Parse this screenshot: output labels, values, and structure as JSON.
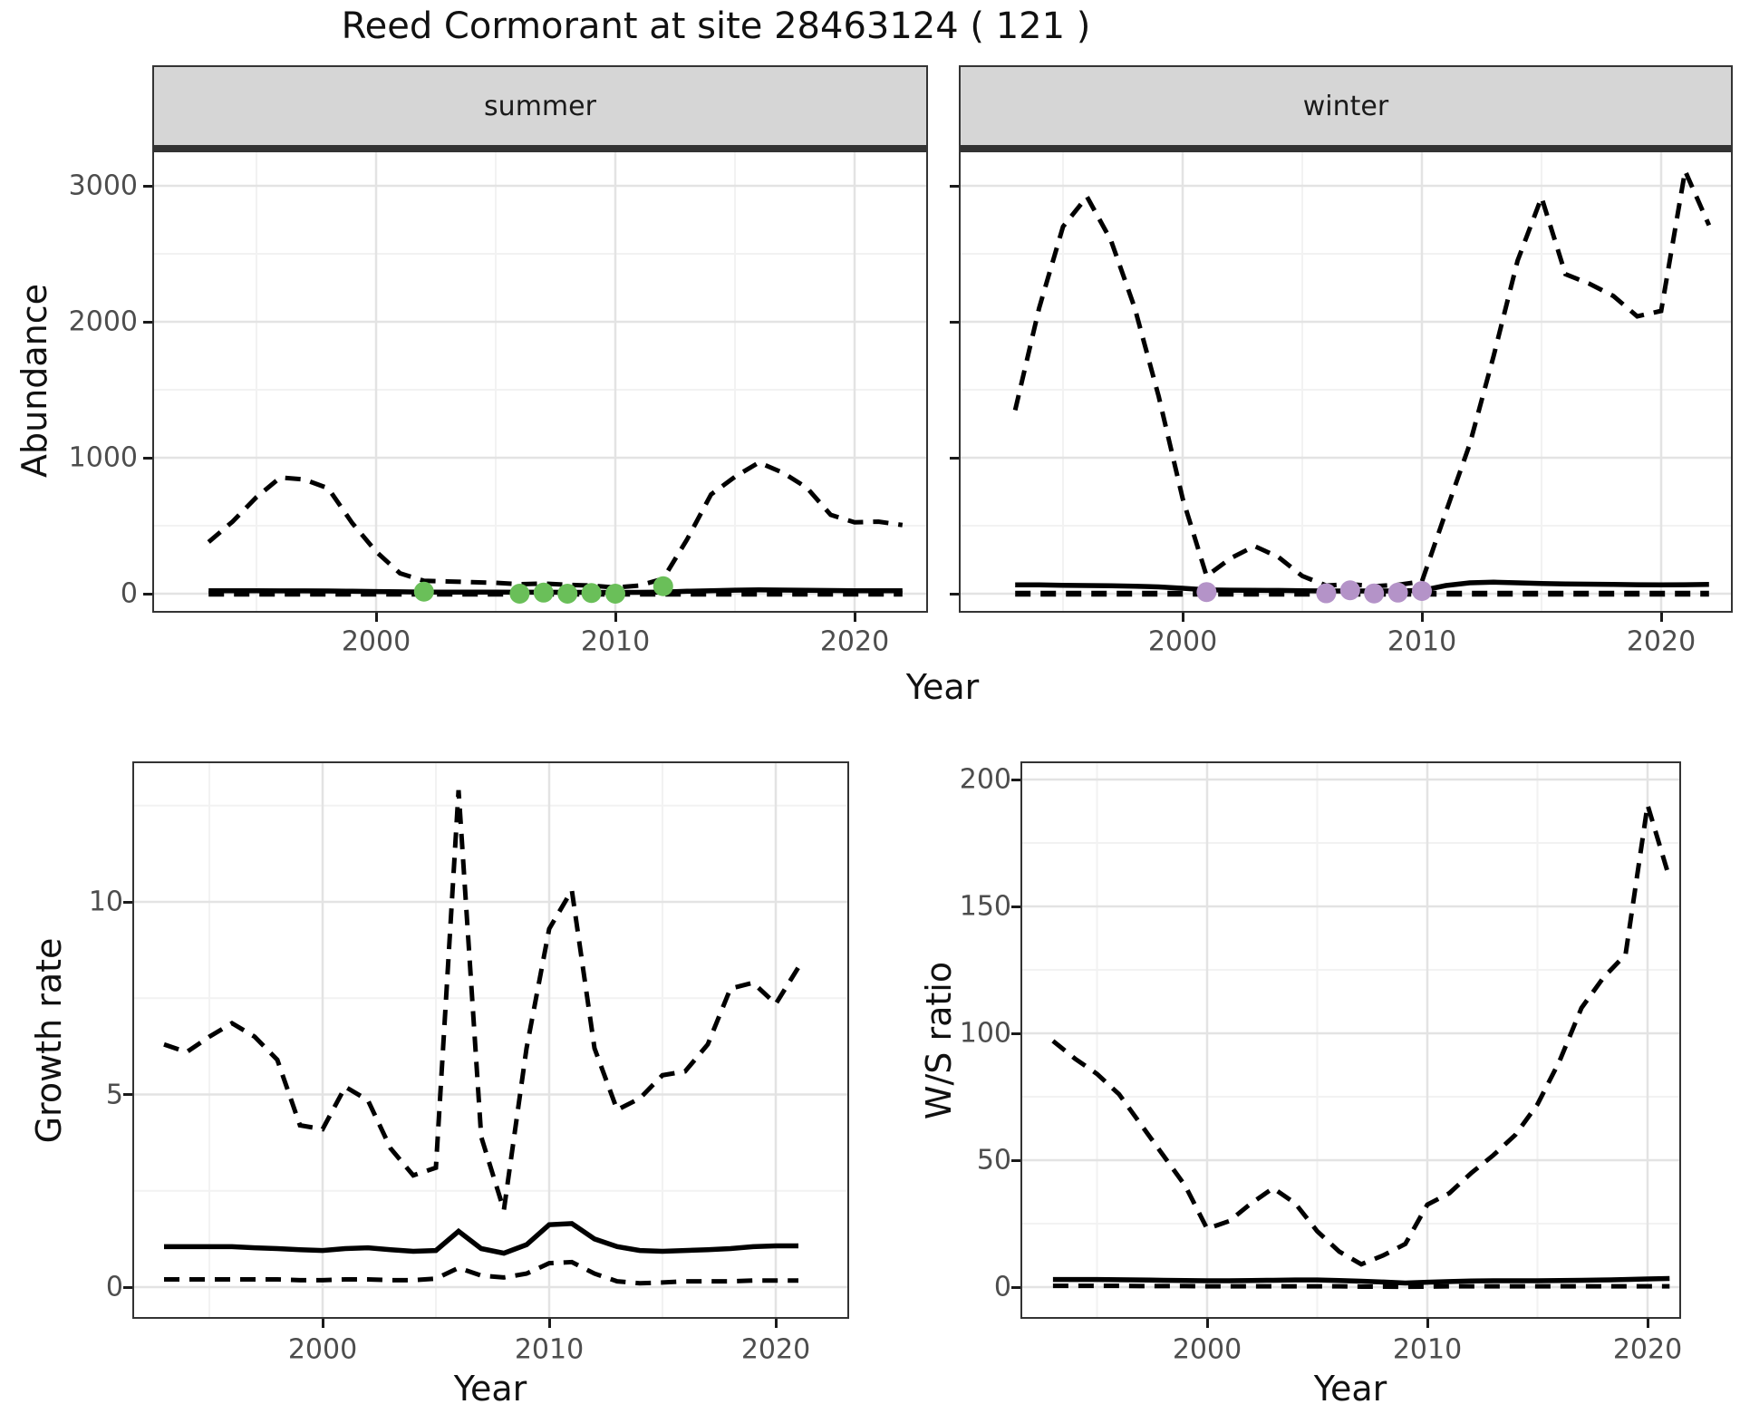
{
  "title": "Reed Cormorant at site 28463124 ( 121 )",
  "axis_labels": {
    "x": "Year",
    "y_abundance": "Abundance",
    "y_growth": "Growth rate",
    "y_ws": "W/S ratio"
  },
  "facets": {
    "summer": "summer",
    "winter": "winter"
  },
  "colors": {
    "line": "#000000",
    "observed_summer": "#6abf59",
    "observed_winter": "#b493c8",
    "strip_bg": "#d6d6d6",
    "grid_major": "#e3e3e3",
    "grid_minor": "#f2f2f2",
    "tick_label": "#4d4d4d",
    "text": "#1a1a1a",
    "panel_border": "#333333"
  },
  "chart_data": [
    {
      "type": "line",
      "facet": "summer",
      "title": "",
      "xlabel": "Year",
      "ylabel": "Abundance",
      "xlim": [
        1990.6,
        2023.1
      ],
      "ylim": [
        -180,
        3420
      ],
      "xticks": [
        2000,
        2010,
        2020
      ],
      "xminor": [
        1995,
        2005,
        2015
      ],
      "yticks": [
        0,
        1000,
        2000,
        3000
      ],
      "yminor": [
        500,
        1500,
        2500
      ],
      "x": [
        1993,
        1994,
        1995,
        1996,
        1997,
        1998,
        1999,
        2000,
        2001,
        2002,
        2003,
        2004,
        2005,
        2006,
        2007,
        2008,
        2009,
        2010,
        2011,
        2012,
        2013,
        2014,
        2015,
        2016,
        2017,
        2018,
        2019,
        2020,
        2021,
        2022
      ],
      "series": [
        {
          "name": "upper_95ci",
          "style": "dashed",
          "values": [
            380,
            530,
            710,
            855,
            840,
            775,
            520,
            310,
            150,
            95,
            90,
            85,
            80,
            70,
            75,
            65,
            60,
            45,
            60,
            110,
            400,
            730,
            860,
            965,
            890,
            780,
            580,
            525,
            530,
            505
          ]
        },
        {
          "name": "median_estimate",
          "style": "solid",
          "values": [
            22,
            22,
            22,
            21,
            21,
            20,
            18,
            16,
            14,
            12,
            12,
            12,
            12,
            11,
            11,
            10,
            10,
            9,
            10,
            12,
            18,
            22,
            26,
            28,
            27,
            25,
            23,
            22,
            22,
            22
          ]
        },
        {
          "name": "lower_95ci",
          "style": "dashed",
          "values": [
            0,
            0,
            0,
            0,
            0,
            0,
            0,
            0,
            0,
            0,
            0,
            0,
            0,
            0,
            0,
            0,
            0,
            0,
            0,
            0,
            0,
            0,
            0,
            0,
            0,
            0,
            0,
            0,
            0,
            0
          ]
        }
      ],
      "points": {
        "name": "observed_counts",
        "color": "#6abf59",
        "x": [
          2002,
          2006,
          2007,
          2008,
          2009,
          2010,
          2012
        ],
        "y": [
          15,
          0,
          8,
          0,
          5,
          0,
          55
        ]
      }
    },
    {
      "type": "line",
      "facet": "winter",
      "title": "",
      "xlabel": "Year",
      "ylabel": "Abundance",
      "xlim": [
        1990.6,
        2023.1
      ],
      "ylim": [
        -180,
        3420
      ],
      "xticks": [
        2000,
        2010,
        2020
      ],
      "xminor": [
        1995,
        2005,
        2015
      ],
      "yticks": [
        0,
        1000,
        2000,
        3000
      ],
      "yminor": [
        500,
        1500,
        2500
      ],
      "x": [
        1993,
        1994,
        1995,
        1996,
        1997,
        1998,
        1999,
        2000,
        2001,
        2002,
        2003,
        2004,
        2005,
        2006,
        2007,
        2008,
        2009,
        2010,
        2011,
        2012,
        2013,
        2014,
        2015,
        2016,
        2017,
        2018,
        2019,
        2020,
        2021,
        2022
      ],
      "series": [
        {
          "name": "upper_95ci",
          "style": "dashed",
          "values": [
            1350,
            2100,
            2700,
            2920,
            2600,
            2100,
            1450,
            700,
            130,
            260,
            350,
            270,
            130,
            60,
            70,
            55,
            65,
            90,
            600,
            1100,
            1750,
            2450,
            2915,
            2350,
            2280,
            2190,
            2040,
            2080,
            3110,
            2710
          ]
        },
        {
          "name": "median_estimate",
          "style": "solid",
          "values": [
            65,
            65,
            62,
            60,
            58,
            55,
            50,
            40,
            28,
            26,
            25,
            24,
            22,
            20,
            20,
            20,
            20,
            24,
            60,
            80,
            85,
            80,
            75,
            72,
            70,
            68,
            66,
            65,
            66,
            68
          ]
        },
        {
          "name": "lower_95ci",
          "style": "dashed",
          "values": [
            0,
            0,
            0,
            0,
            0,
            0,
            0,
            0,
            0,
            0,
            0,
            0,
            0,
            0,
            0,
            0,
            0,
            0,
            0,
            0,
            0,
            0,
            0,
            0,
            0,
            0,
            0,
            0,
            0,
            0
          ]
        }
      ],
      "points": {
        "name": "observed_counts",
        "color": "#b493c8",
        "x": [
          2001,
          2006,
          2007,
          2008,
          2009,
          2010
        ],
        "y": [
          12,
          3,
          25,
          2,
          8,
          20
        ]
      }
    },
    {
      "type": "line",
      "title": "",
      "xlabel": "Year",
      "ylabel": "Growth rate",
      "xlim": [
        1991.4,
        2023.2
      ],
      "ylim": [
        -0.8,
        13.6
      ],
      "xticks": [
        2000,
        2010,
        2020
      ],
      "xminor": [
        1995,
        2005,
        2015
      ],
      "yticks": [
        0,
        5,
        10
      ],
      "yminor": [
        2.5,
        7.5,
        12.5
      ],
      "x": [
        1993,
        1994,
        1995,
        1996,
        1997,
        1998,
        1999,
        2000,
        2001,
        2002,
        2003,
        2004,
        2005,
        2006,
        2007,
        2008,
        2009,
        2010,
        2011,
        2012,
        2013,
        2014,
        2015,
        2016,
        2017,
        2018,
        2019,
        2020,
        2021
      ],
      "series": [
        {
          "name": "upper_95ci",
          "style": "dashed",
          "values": [
            6.3,
            6.1,
            6.5,
            6.85,
            6.5,
            5.9,
            4.2,
            4.1,
            5.2,
            4.85,
            3.6,
            2.9,
            3.1,
            12.9,
            3.9,
            2.0,
            6.2,
            9.3,
            10.3,
            6.2,
            4.6,
            4.9,
            5.5,
            5.6,
            6.3,
            7.75,
            7.9,
            7.35,
            8.3
          ]
        },
        {
          "name": "median_estimate",
          "style": "solid",
          "values": [
            1.05,
            1.05,
            1.05,
            1.05,
            1.02,
            1.0,
            0.97,
            0.95,
            1.0,
            1.02,
            0.97,
            0.93,
            0.95,
            1.45,
            1.0,
            0.88,
            1.1,
            1.62,
            1.65,
            1.25,
            1.05,
            0.95,
            0.93,
            0.95,
            0.97,
            1.0,
            1.05,
            1.07,
            1.07
          ]
        },
        {
          "name": "lower_95ci",
          "style": "dashed",
          "values": [
            0.2,
            0.2,
            0.2,
            0.2,
            0.2,
            0.2,
            0.18,
            0.18,
            0.2,
            0.2,
            0.18,
            0.18,
            0.22,
            0.5,
            0.3,
            0.25,
            0.35,
            0.62,
            0.65,
            0.35,
            0.15,
            0.1,
            0.12,
            0.15,
            0.15,
            0.15,
            0.17,
            0.17,
            0.17
          ]
        }
      ]
    },
    {
      "type": "line",
      "title": "",
      "xlabel": "Year",
      "ylabel": "W/S ratio",
      "xlim": [
        1991.5,
        2021.5
      ],
      "ylim": [
        -7,
        207
      ],
      "xticks": [
        2000,
        2010,
        2020
      ],
      "xminor": [
        1995,
        2005,
        2015
      ],
      "yticks": [
        0,
        50,
        100,
        150,
        200
      ],
      "yminor": [
        25,
        75,
        125,
        175
      ],
      "x": [
        1993,
        1994,
        1995,
        1996,
        1997,
        1998,
        1999,
        2000,
        2001,
        2002,
        2003,
        2004,
        2005,
        2006,
        2007,
        2008,
        2009,
        2010,
        2011,
        2012,
        2013,
        2014,
        2015,
        2016,
        2017,
        2018,
        2019,
        2020,
        2021
      ],
      "series": [
        {
          "name": "upper_95ci",
          "style": "dashed",
          "values": [
            97,
            90,
            84,
            76,
            64,
            52,
            40,
            23,
            26,
            33,
            39,
            33,
            22,
            14,
            9,
            12.5,
            17,
            32.5,
            37,
            45,
            52,
            60,
            72,
            89,
            110,
            122,
            131,
            190,
            161
          ]
        },
        {
          "name": "median_estimate",
          "style": "solid",
          "values": [
            3,
            3,
            3,
            2.9,
            2.8,
            2.7,
            2.6,
            2.5,
            2.5,
            2.6,
            2.7,
            2.8,
            2.8,
            2.6,
            2.3,
            2.0,
            1.6,
            1.9,
            2.2,
            2.4,
            2.5,
            2.5,
            2.5,
            2.6,
            2.7,
            2.8,
            3.0,
            3.2,
            3.4
          ]
        },
        {
          "name": "lower_95ci",
          "style": "dashed",
          "values": [
            0.5,
            0.5,
            0.5,
            0.5,
            0.4,
            0.4,
            0.4,
            0.3,
            0.3,
            0.3,
            0.3,
            0.3,
            0.3,
            0.3,
            0.2,
            0.2,
            0.1,
            0.2,
            0.3,
            0.3,
            0.3,
            0.3,
            0.3,
            0.3,
            0.3,
            0.3,
            0.3,
            0.3,
            0.3
          ]
        }
      ]
    }
  ]
}
